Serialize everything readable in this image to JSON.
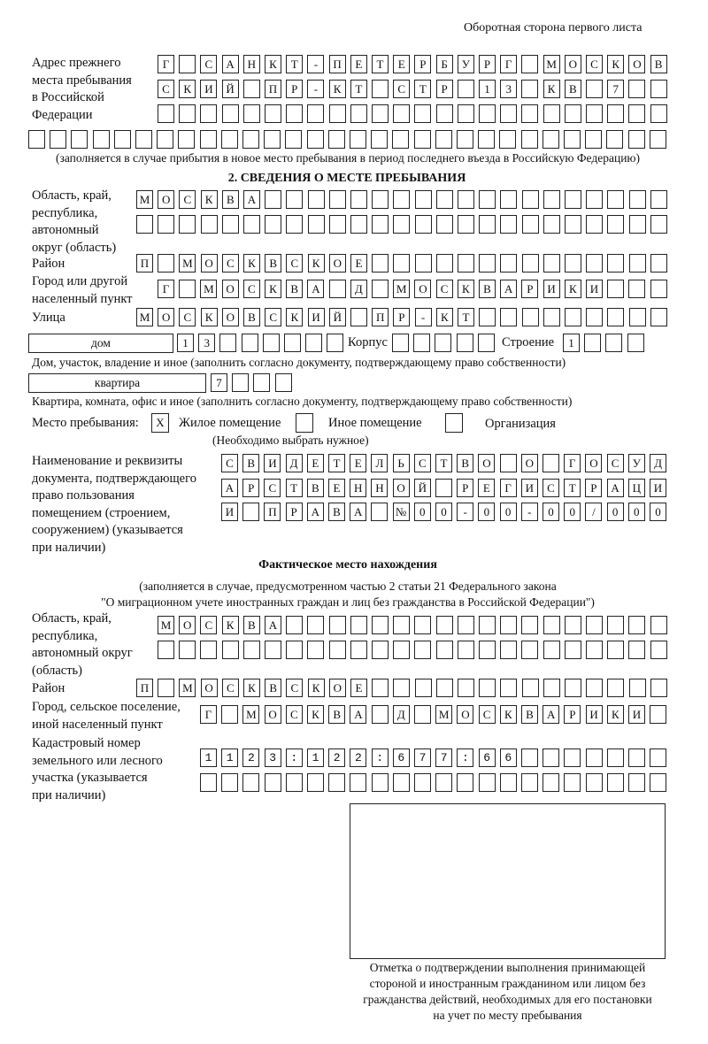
{
  "page_header": "Оборотная сторона первого листа",
  "previous_address": {
    "label": [
      "Адрес прежнего",
      "места пребывания",
      "в Российской",
      "Федерации"
    ],
    "rows": [
      "Г САНКТ-ПЕТЕРБУРГ МОСКОВ",
      "СКИЙ ПР-КТ СТР 13 КВ 7",
      "",
      ""
    ],
    "note": "(заполняется в случае прибытия в новое место пребывания в период последнего въезда в Российскую Федерацию)"
  },
  "section2": {
    "title": "2. СВЕДЕНИЯ О МЕСТЕ ПРЕБЫВАНИЯ",
    "region_label": [
      "Область, край,",
      "республика,",
      "автономный",
      "округ (область)"
    ],
    "region_rows": [
      "МОСКВА",
      ""
    ],
    "district_label": "Район",
    "district": "П МОСКВСКОЕ",
    "city_label": [
      "Город или другой",
      "населенный пункт"
    ],
    "city": "Г МОСКВА Д МОСКВАРИКИ",
    "street_label": "Улица",
    "street": "МОСКОВСКИЙ ПР-КТ",
    "house_type": "дом",
    "house": "13",
    "korpus_label": "Корпус",
    "korpus": "",
    "building_label": "Строение",
    "building": "1",
    "house_note": "Дом, участок, владение и иное (заполнить согласно документу, подтверждающему право собственности)",
    "apartment_type": "квартира",
    "apartment": "7",
    "apartment_note": "Квартира, комната, офис и иное (заполнить согласно документу, подтверждающему право собственности)",
    "stay_place_label": "Место пребывания:",
    "options": [
      {
        "label": "Жилое помещение",
        "mark": "Х",
        "checked": true
      },
      {
        "label": "Иное помещение",
        "mark": "",
        "checked": false
      },
      {
        "label": "Организация",
        "mark": "",
        "checked": false
      }
    ],
    "options_note": "(Необходимо выбрать нужное)",
    "doc_label": [
      "Наименование и реквизиты",
      "документа, подтверждающего",
      "право пользования",
      "помещением (строением,",
      "сооружением) (указывается",
      "при наличии)"
    ],
    "doc_rows": [
      "СВИДЕТЕЛЬСТВО О ГОСУД",
      "АРСТВЕННОЙ РЕГИСТРАЦИ",
      "И ПРАВА №00-00-00/000"
    ]
  },
  "actual_location": {
    "title": "Фактическое место нахождения",
    "note": [
      "(заполняется в случае, предусмотренном частью 2 статьи 21 Федерального закона",
      "\"О миграционном учете иностранных граждан и лиц без гражданства в Российской Федерации\")"
    ],
    "region_label": [
      "Область, край,",
      "республика,",
      "автономный округ",
      "(область)"
    ],
    "region_rows": [
      "МОСКВА",
      ""
    ],
    "district_label": "Район",
    "district": "П МОСКВСКОЕ",
    "city_label": [
      "Город, сельское поселение,",
      "иной населенный пункт"
    ],
    "city": "Г МОСКВА Д МОСКВАРИКИ",
    "cadastral_label": [
      "Кадастровый номер",
      "земельного или лесного",
      "участка (указывается",
      "при наличии)"
    ],
    "cadastral_rows": [
      "1123:122:677:66",
      ""
    ]
  },
  "stamp_caption": [
    "Отметка о подтверждении выполнения принимающей",
    "стороной и иностранным гражданином или лицом без",
    "гражданства действий, необходимых для его постановки",
    "на учет по месту пребывания"
  ]
}
